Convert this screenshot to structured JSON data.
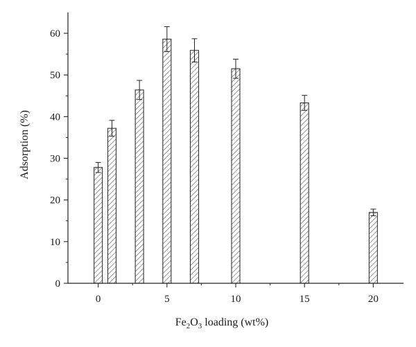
{
  "chart_data": {
    "type": "bar",
    "xlabel": {
      "prefix": "Fe",
      "sub1": "2",
      "mid": "O",
      "sub2": "3",
      "suffix": " loading (wt%)"
    },
    "ylabel": "Adsorption (%)",
    "x": [
      0,
      1,
      3,
      5,
      7,
      10,
      15,
      20
    ],
    "values": [
      27.8,
      37.2,
      46.4,
      58.6,
      55.9,
      51.5,
      43.3,
      17.0
    ],
    "errors": [
      1.2,
      1.9,
      2.3,
      3.0,
      2.8,
      2.3,
      1.8,
      0.8
    ],
    "xlim": [
      -2.2,
      22.2
    ],
    "ylim": [
      0,
      65
    ],
    "xticks": [
      0,
      5,
      10,
      15,
      20
    ],
    "yticks": [
      0,
      10,
      20,
      30,
      40,
      50,
      60
    ],
    "bar_fill": "hatched",
    "grid": false,
    "colors": {
      "bar_stroke": "#333333",
      "hatch": "#444444",
      "axis": "#222222"
    }
  }
}
